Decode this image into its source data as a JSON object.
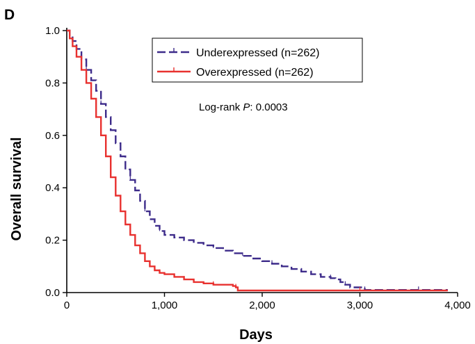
{
  "panel_label": "D",
  "chart_data": {
    "type": "line",
    "subtype": "kaplan-meier",
    "xlabel": "Days",
    "ylabel": "Overall survival",
    "xlim": [
      0,
      4000
    ],
    "ylim": [
      0,
      1.0
    ],
    "xticks": [
      0,
      1000,
      2000,
      3000,
      4000
    ],
    "xtick_labels": [
      "0",
      "1,000",
      "2,000",
      "3,000",
      "4,000"
    ],
    "yticks": [
      0.0,
      0.2,
      0.4,
      0.6,
      0.8,
      1.0
    ],
    "ytick_labels": [
      "0.0",
      "0.2",
      "0.4",
      "0.6",
      "0.8",
      "1.0"
    ],
    "grid": false,
    "legend_position": "top-center",
    "annotation": {
      "prefix": "Log-rank ",
      "italic": "P",
      "suffix": ": 0.0003"
    },
    "series": [
      {
        "name": "Underexpressed (n=262)",
        "color": "#3d2b8a",
        "dash": "dashed",
        "x": [
          0,
          30,
          60,
          100,
          150,
          200,
          250,
          300,
          350,
          400,
          450,
          500,
          550,
          600,
          650,
          700,
          750,
          800,
          850,
          900,
          950,
          1000,
          1100,
          1200,
          1300,
          1400,
          1500,
          1600,
          1700,
          1800,
          1900,
          2000,
          2100,
          2200,
          2300,
          2400,
          2500,
          2600,
          2700,
          2750,
          2800,
          2850,
          2900,
          3000,
          3050,
          3500,
          3550,
          3600,
          3900
        ],
        "y": [
          1.0,
          0.98,
          0.96,
          0.93,
          0.89,
          0.85,
          0.81,
          0.77,
          0.72,
          0.67,
          0.62,
          0.57,
          0.52,
          0.47,
          0.43,
          0.39,
          0.35,
          0.31,
          0.28,
          0.255,
          0.235,
          0.22,
          0.21,
          0.2,
          0.19,
          0.18,
          0.17,
          0.16,
          0.15,
          0.14,
          0.13,
          0.12,
          0.11,
          0.1,
          0.09,
          0.08,
          0.07,
          0.06,
          0.055,
          0.05,
          0.04,
          0.03,
          0.02,
          0.02,
          0.01,
          0.01,
          0.01,
          0.01,
          0.01
        ]
      },
      {
        "name": "Overexpressed (n=262)",
        "color": "#e8312f",
        "dash": "solid",
        "x": [
          0,
          30,
          60,
          100,
          150,
          200,
          250,
          300,
          350,
          400,
          450,
          500,
          550,
          600,
          650,
          700,
          750,
          800,
          850,
          900,
          950,
          1000,
          1100,
          1200,
          1300,
          1400,
          1500,
          1600,
          1700,
          1730,
          1750,
          2000,
          3000,
          3900
        ],
        "y": [
          1.0,
          0.97,
          0.94,
          0.9,
          0.85,
          0.8,
          0.74,
          0.67,
          0.6,
          0.52,
          0.44,
          0.37,
          0.31,
          0.26,
          0.22,
          0.18,
          0.15,
          0.12,
          0.1,
          0.085,
          0.075,
          0.07,
          0.06,
          0.05,
          0.04,
          0.035,
          0.03,
          0.03,
          0.025,
          0.02,
          0.008,
          0.008,
          0.008,
          0.008
        ]
      }
    ]
  }
}
